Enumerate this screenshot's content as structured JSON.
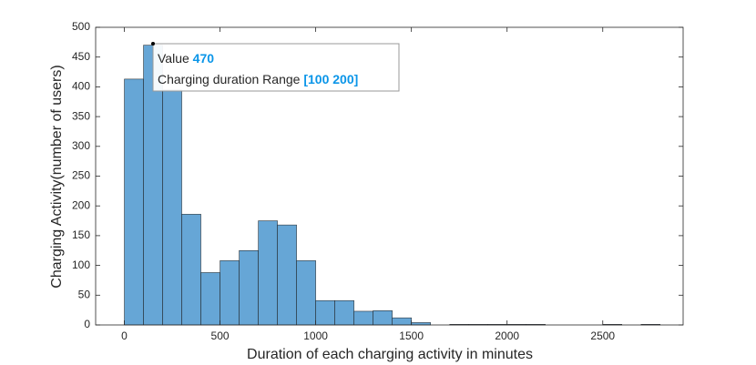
{
  "chart_data": {
    "type": "histogram",
    "xlabel": "Duration of each charging activity in minutes",
    "ylabel": "Charging Activity(number of users)",
    "bins": [
      0,
      100,
      200,
      300,
      400,
      500,
      600,
      700,
      800,
      900,
      1000,
      1100,
      1200,
      1300,
      1400,
      1500,
      1600,
      1700,
      1800,
      1900,
      2000,
      2100,
      2200,
      2300,
      2400,
      2500,
      2600,
      2700,
      2800
    ],
    "values": [
      413,
      470,
      395,
      186,
      88,
      108,
      125,
      175,
      168,
      108,
      41,
      41,
      23,
      24,
      12,
      4,
      0,
      1,
      1,
      1,
      1,
      1,
      0,
      0,
      0,
      1,
      0,
      1
    ],
    "color": "#66a6d6",
    "xlim": [
      -150,
      2920
    ],
    "ylim": [
      0,
      500
    ],
    "xticks": [
      0,
      500,
      1000,
      1500,
      2000,
      2500
    ],
    "yticks": [
      0,
      50,
      100,
      150,
      200,
      250,
      300,
      350,
      400,
      450,
      500
    ],
    "tooltip": {
      "value_label": "Value",
      "value": 470,
      "range_label": "Charging duration Range",
      "range": "[100 200]"
    }
  }
}
